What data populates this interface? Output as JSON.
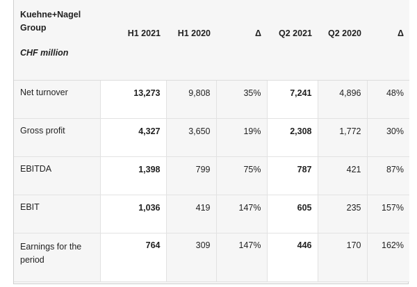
{
  "table": {
    "company": "Kuehne+Nagel Group",
    "unit": "CHF million",
    "columns": [
      "H1 2021",
      "H1 2020",
      "Δ",
      "Q2 2021",
      "Q2 2020",
      "Δ"
    ],
    "rows": [
      {
        "label": "Net turnover",
        "values": [
          "13,273",
          "9,808",
          "35%",
          "7,241",
          "4,896",
          "48%"
        ]
      },
      {
        "label": "Gross profit",
        "values": [
          "4,327",
          "3,650",
          "19%",
          "2,308",
          "1,772",
          "30%"
        ]
      },
      {
        "label": "EBITDA",
        "values": [
          "1,398",
          "799",
          "75%",
          "787",
          "421",
          "87%"
        ]
      },
      {
        "label": "EBIT",
        "values": [
          "1,036",
          "419",
          "147%",
          "605",
          "235",
          "157%"
        ]
      },
      {
        "label": "Earnings for the period",
        "values": [
          "764",
          "309",
          "147%",
          "446",
          "170",
          "162%"
        ]
      }
    ]
  }
}
